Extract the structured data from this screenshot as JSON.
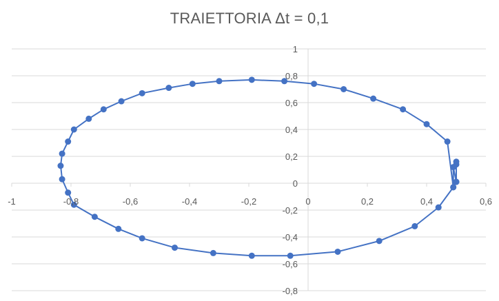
{
  "chart_data": {
    "type": "scatter",
    "title": "TRAIETTORIA  Δt = 0,1",
    "xlabel": "",
    "ylabel": "",
    "xlim": [
      -1,
      0.6
    ],
    "ylim": [
      -0.8,
      1
    ],
    "xticks": [
      -1,
      -0.8,
      -0.6,
      -0.4,
      -0.2,
      0,
      0.2,
      0.4,
      0.6
    ],
    "yticks": [
      -0.8,
      -0.6,
      -0.4,
      -0.2,
      0,
      0.2,
      0.4,
      0.6,
      0.8,
      1
    ],
    "xtick_labels": [
      "-1",
      "-0,8",
      "-0,6",
      "-0,4",
      "-0,2",
      "0",
      "0,2",
      "0,4",
      "0,6"
    ],
    "ytick_labels": [
      "-0,8",
      "-0,6",
      "-0,4",
      "-0,2",
      "0",
      "0,2",
      "0,4",
      "0,6",
      "0,8",
      "1"
    ],
    "grid": true,
    "legend": "none",
    "marker": "circle",
    "line": true,
    "color": "#4472c4",
    "series": [
      {
        "x": [
          0.5,
          0.5,
          0.5,
          0.49,
          0.49,
          0.47,
          0.4,
          0.32,
          0.22,
          0.12,
          0.02,
          -0.08,
          -0.19,
          -0.3,
          -0.39,
          -0.47,
          -0.56,
          -0.63,
          -0.69,
          -0.74,
          -0.79,
          -0.81,
          -0.83,
          -0.835,
          -0.83,
          -0.81,
          -0.79,
          -0.72,
          -0.64,
          -0.56,
          -0.45,
          -0.32,
          -0.19,
          -0.06,
          0.1,
          0.24,
          0.36,
          0.44,
          0.49,
          0.5
        ],
        "y": [
          0.14,
          0.16,
          0.01,
          0.12,
          -0.03,
          0.31,
          0.44,
          0.55,
          0.63,
          0.7,
          0.74,
          0.76,
          0.77,
          0.76,
          0.74,
          0.71,
          0.67,
          0.61,
          0.55,
          0.48,
          0.4,
          0.31,
          0.22,
          0.13,
          0.03,
          -0.07,
          -0.16,
          -0.25,
          -0.34,
          -0.41,
          -0.48,
          -0.52,
          -0.54,
          -0.54,
          -0.51,
          -0.43,
          -0.32,
          -0.18,
          -0.03,
          0.01
        ]
      }
    ]
  }
}
